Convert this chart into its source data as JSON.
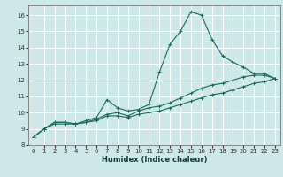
{
  "title": "",
  "xlabel": "Humidex (Indice chaleur)",
  "ylabel": "",
  "background_color": "#cce8e8",
  "grid_color": "#ffffff",
  "line_color": "#1a6b5a",
  "xlim": [
    -0.5,
    23.5
  ],
  "ylim": [
    8,
    16.6
  ],
  "xticks": [
    0,
    1,
    2,
    3,
    4,
    5,
    6,
    7,
    8,
    9,
    10,
    11,
    12,
    13,
    14,
    15,
    16,
    17,
    18,
    19,
    20,
    21,
    22,
    23
  ],
  "yticks": [
    8,
    9,
    10,
    11,
    12,
    13,
    14,
    15,
    16
  ],
  "series": [
    {
      "x": [
        0,
        1,
        2,
        3,
        4,
        5,
        6,
        7,
        8,
        9,
        10,
        11,
        12,
        13,
        14,
        15,
        16,
        17,
        18,
        19,
        20,
        21,
        22,
        23
      ],
      "y": [
        8.5,
        9.0,
        9.4,
        9.4,
        9.3,
        9.5,
        9.7,
        10.8,
        10.3,
        10.1,
        10.2,
        10.5,
        12.5,
        14.2,
        15.0,
        16.2,
        16.0,
        14.5,
        13.5,
        13.1,
        12.8,
        12.4,
        12.4,
        12.1
      ]
    },
    {
      "x": [
        0,
        1,
        2,
        3,
        4,
        5,
        6,
        7,
        8,
        9,
        10,
        11,
        12,
        13,
        14,
        15,
        16,
        17,
        18,
        19,
        20,
        21,
        22,
        23
      ],
      "y": [
        8.5,
        9.0,
        9.4,
        9.4,
        9.3,
        9.4,
        9.6,
        9.9,
        10.0,
        9.8,
        10.1,
        10.3,
        10.4,
        10.6,
        10.9,
        11.2,
        11.5,
        11.7,
        11.8,
        12.0,
        12.2,
        12.3,
        12.3,
        12.1
      ]
    },
    {
      "x": [
        0,
        1,
        2,
        3,
        4,
        5,
        6,
        7,
        8,
        9,
        10,
        11,
        12,
        13,
        14,
        15,
        16,
        17,
        18,
        19,
        20,
        21,
        22,
        23
      ],
      "y": [
        8.5,
        9.0,
        9.3,
        9.3,
        9.3,
        9.4,
        9.5,
        9.8,
        9.8,
        9.7,
        9.9,
        10.0,
        10.1,
        10.3,
        10.5,
        10.7,
        10.9,
        11.1,
        11.2,
        11.4,
        11.6,
        11.8,
        11.9,
        12.1
      ]
    }
  ]
}
